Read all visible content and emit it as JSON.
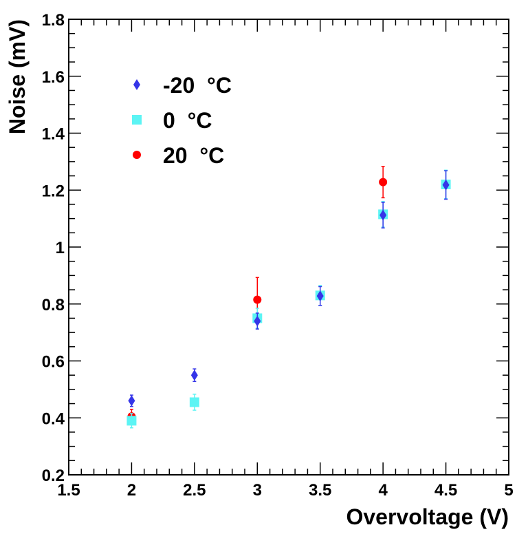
{
  "chart_data": {
    "type": "scatter",
    "title": "",
    "xlabel": "Overvoltage (V)",
    "ylabel": "Noise (mV)",
    "xlim": [
      1.5,
      5
    ],
    "ylim": [
      0.2,
      1.8
    ],
    "xticks": [
      "1.5",
      "2",
      "2.5",
      "3",
      "3.5",
      "4",
      "4.5",
      "5"
    ],
    "yticks": [
      "0.2",
      "0.4",
      "0.6",
      "0.8",
      "1",
      "1.2",
      "1.4",
      "1.6",
      "1.8"
    ],
    "grid": false,
    "legend_position": "top-left",
    "series": [
      {
        "name": "20  °C",
        "marker": "circle",
        "color": "#ff0000",
        "points": [
          {
            "x": 2.0,
            "y": 0.405,
            "err": 0.025
          },
          {
            "x": 3.0,
            "y": 0.815,
            "err": 0.078
          },
          {
            "x": 4.0,
            "y": 1.228,
            "err": 0.055
          }
        ]
      },
      {
        "name": "0  °C",
        "marker": "square",
        "color": "#5cf4f4",
        "points": [
          {
            "x": 2.0,
            "y": 0.39,
            "err": 0.025
          },
          {
            "x": 2.5,
            "y": 0.455,
            "err": 0.028
          },
          {
            "x": 3.0,
            "y": 0.75,
            "err": 0.035
          },
          {
            "x": 3.5,
            "y": 0.83,
            "err": 0.035
          },
          {
            "x": 4.0,
            "y": 1.115,
            "err": 0.045
          },
          {
            "x": 4.5,
            "y": 1.22,
            "err": 0.05
          }
        ]
      },
      {
        "name": "-20  °C",
        "marker": "diamond",
        "color": "#3535e8",
        "points": [
          {
            "x": 2.0,
            "y": 0.46,
            "err": 0.02
          },
          {
            "x": 2.5,
            "y": 0.55,
            "err": 0.022
          },
          {
            "x": 3.0,
            "y": 0.74,
            "err": 0.028
          },
          {
            "x": 3.5,
            "y": 0.828,
            "err": 0.033
          },
          {
            "x": 4.0,
            "y": 1.112,
            "err": 0.045
          },
          {
            "x": 4.5,
            "y": 1.218,
            "err": 0.05
          }
        ]
      }
    ],
    "legend_order": [
      "-20  °C",
      "0  °C",
      "20  °C"
    ]
  }
}
